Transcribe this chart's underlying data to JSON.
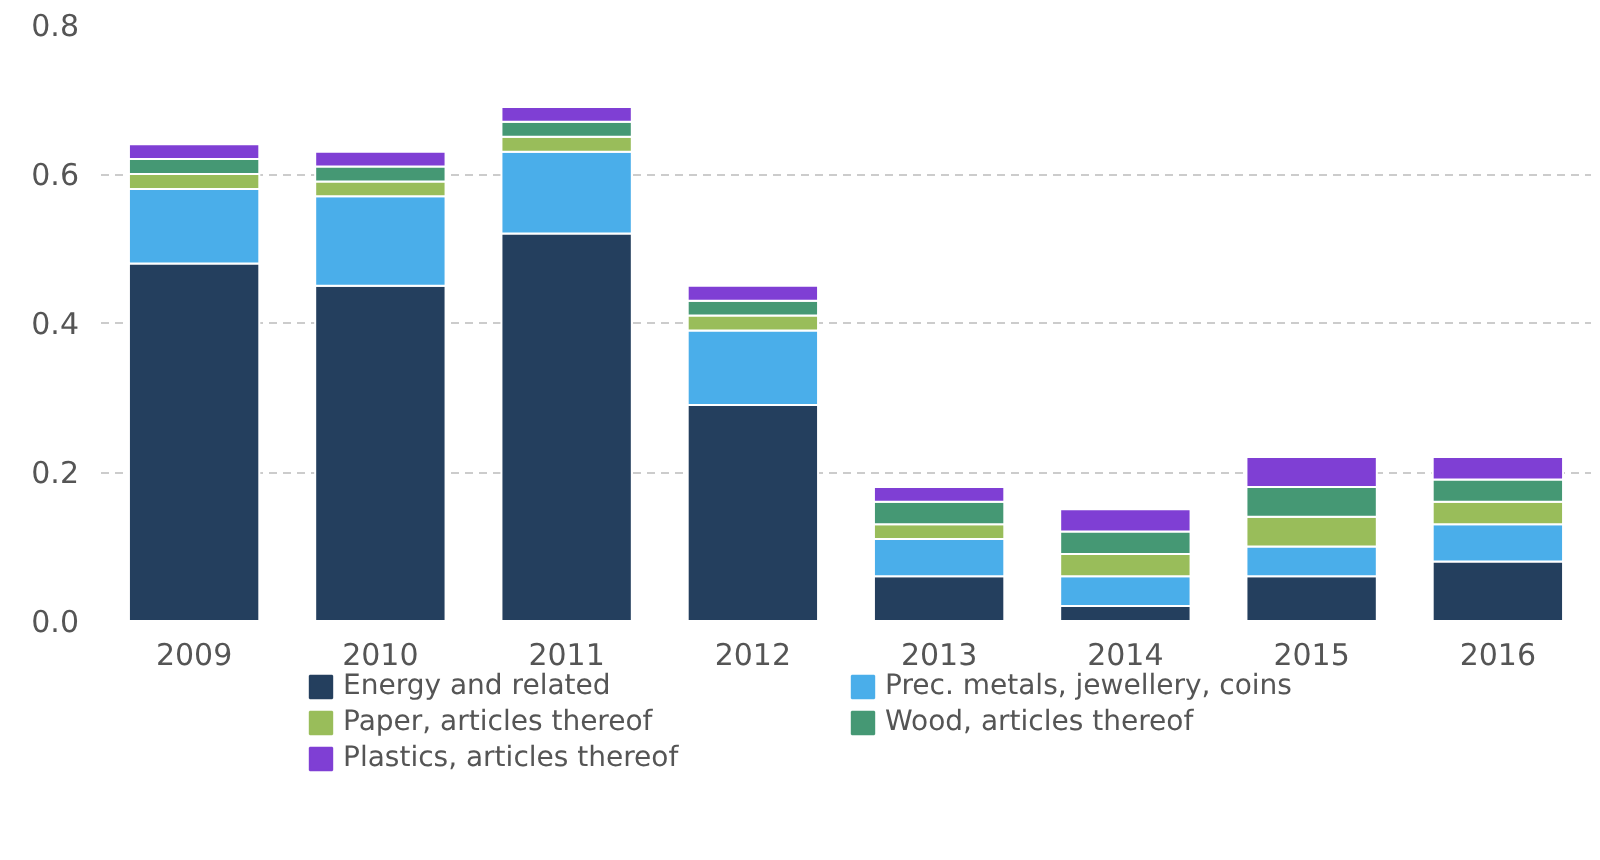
{
  "chart_data": {
    "type": "bar",
    "stacked": true,
    "categories": [
      "2009",
      "2010",
      "2011",
      "2012",
      "2013",
      "2014",
      "2015",
      "2016"
    ],
    "series": [
      {
        "name": "Energy and related",
        "color": "#243f5e",
        "values": [
          0.48,
          0.45,
          0.52,
          0.29,
          0.06,
          0.02,
          0.06,
          0.08
        ]
      },
      {
        "name": "Prec. metals, jewellery, coins",
        "color": "#4aaeea",
        "values": [
          0.1,
          0.12,
          0.11,
          0.1,
          0.05,
          0.04,
          0.04,
          0.05
        ]
      },
      {
        "name": "Paper, articles thereof",
        "color": "#99bd5a",
        "values": [
          0.02,
          0.02,
          0.02,
          0.02,
          0.02,
          0.03,
          0.04,
          0.03
        ]
      },
      {
        "name": "Wood, articles thereof",
        "color": "#459874",
        "values": [
          0.02,
          0.02,
          0.02,
          0.02,
          0.03,
          0.03,
          0.04,
          0.03
        ]
      },
      {
        "name": "Plastics, articles thereof",
        "color": "#7f3fd4",
        "values": [
          0.02,
          0.02,
          0.02,
          0.02,
          0.02,
          0.03,
          0.04,
          0.03
        ]
      }
    ],
    "ylim": [
      0,
      0.8
    ],
    "yticks": [
      {
        "value": 0,
        "label": "0.0"
      },
      0.2,
      0.4,
      0.6,
      0.8
    ],
    "grid": "y",
    "legend": "bottom"
  }
}
